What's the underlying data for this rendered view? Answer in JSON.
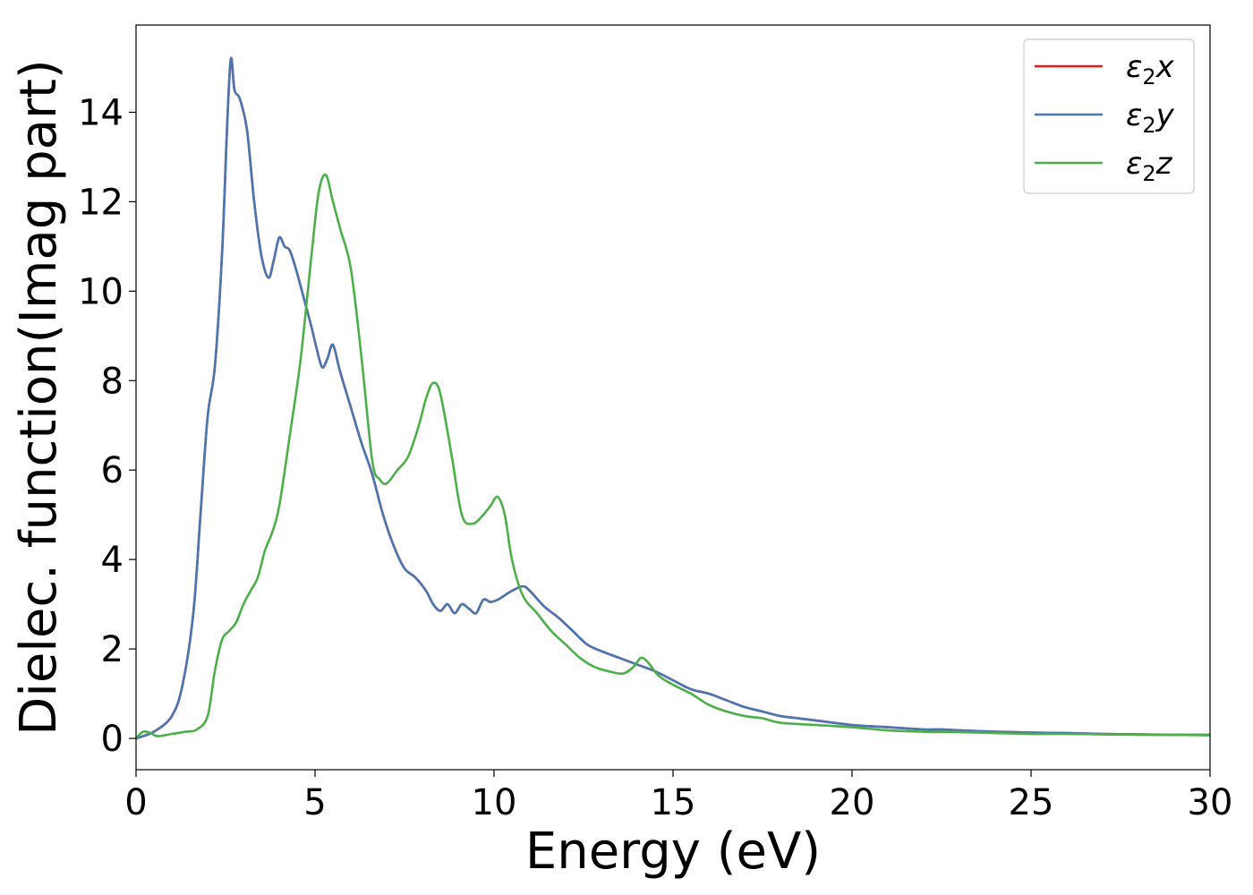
{
  "chart_data": {
    "type": "line",
    "title": "",
    "xlabel": "Energy (eV)",
    "ylabel": "Dielec. function(Imag part)",
    "xlim": [
      0,
      30
    ],
    "ylim": [
      -0.7,
      15.95
    ],
    "xticks": [
      0,
      5,
      10,
      15,
      20,
      25,
      30
    ],
    "yticks": [
      0,
      2,
      4,
      6,
      8,
      10,
      12,
      14
    ],
    "legend_position": "top-right",
    "grid": false,
    "series": [
      {
        "name": "ε₂x",
        "legend_main": "ε",
        "legend_sub": "2",
        "legend_tail": "x",
        "color": "#e41a1c",
        "x": [
          0,
          0.5,
          1.0,
          1.3,
          1.6,
          1.8,
          2.0,
          2.2,
          2.4,
          2.55,
          2.65,
          2.75,
          2.9,
          3.1,
          3.3,
          3.5,
          3.7,
          3.85,
          4.0,
          4.15,
          4.3,
          4.5,
          4.7,
          4.9,
          5.05,
          5.2,
          5.35,
          5.5,
          5.7,
          6.0,
          6.3,
          6.6,
          6.9,
          7.2,
          7.5,
          7.8,
          8.1,
          8.3,
          8.5,
          8.7,
          8.9,
          9.1,
          9.3,
          9.5,
          9.7,
          9.9,
          10.1,
          10.3,
          10.5,
          10.8,
          11.0,
          11.4,
          11.8,
          12.2,
          12.6,
          13.0,
          13.5,
          14.0,
          14.5,
          15.0,
          15.5,
          16.0,
          16.5,
          17.0,
          17.5,
          18.0,
          18.5,
          19.0,
          20.0,
          21.0,
          22.0,
          22.5,
          23.0,
          24.0,
          25.0,
          26.0,
          27.0,
          28.0,
          29.0,
          30.0
        ],
        "values": [
          0.0,
          0.15,
          0.5,
          1.2,
          2.8,
          5.0,
          7.2,
          8.3,
          10.8,
          13.8,
          15.2,
          14.5,
          14.3,
          13.6,
          12.0,
          10.8,
          10.3,
          10.7,
          11.2,
          11.0,
          10.9,
          10.4,
          9.8,
          9.2,
          8.7,
          8.3,
          8.5,
          8.8,
          8.2,
          7.4,
          6.6,
          5.9,
          5.0,
          4.3,
          3.8,
          3.6,
          3.3,
          3.0,
          2.85,
          3.0,
          2.8,
          3.0,
          2.9,
          2.8,
          3.1,
          3.05,
          3.1,
          3.2,
          3.3,
          3.4,
          3.3,
          2.95,
          2.7,
          2.4,
          2.1,
          1.95,
          1.8,
          1.65,
          1.5,
          1.3,
          1.1,
          1.0,
          0.85,
          0.7,
          0.6,
          0.5,
          0.45,
          0.4,
          0.3,
          0.25,
          0.2,
          0.2,
          0.18,
          0.15,
          0.13,
          0.12,
          0.1,
          0.09,
          0.08,
          0.08
        ]
      },
      {
        "name": "ε₂y",
        "legend_main": "ε",
        "legend_sub": "2",
        "legend_tail": "y",
        "color": "#4a77b4",
        "x": [
          0,
          0.5,
          1.0,
          1.3,
          1.6,
          1.8,
          2.0,
          2.2,
          2.4,
          2.55,
          2.65,
          2.75,
          2.9,
          3.1,
          3.3,
          3.5,
          3.7,
          3.85,
          4.0,
          4.15,
          4.3,
          4.5,
          4.7,
          4.9,
          5.05,
          5.2,
          5.35,
          5.5,
          5.7,
          6.0,
          6.3,
          6.6,
          6.9,
          7.2,
          7.5,
          7.8,
          8.1,
          8.3,
          8.5,
          8.7,
          8.9,
          9.1,
          9.3,
          9.5,
          9.7,
          9.9,
          10.1,
          10.3,
          10.5,
          10.8,
          11.0,
          11.4,
          11.8,
          12.2,
          12.6,
          13.0,
          13.5,
          14.0,
          14.5,
          15.0,
          15.5,
          16.0,
          16.5,
          17.0,
          17.5,
          18.0,
          18.5,
          19.0,
          20.0,
          21.0,
          22.0,
          22.5,
          23.0,
          24.0,
          25.0,
          26.0,
          27.0,
          28.0,
          29.0,
          30.0
        ],
        "values": [
          0.0,
          0.15,
          0.5,
          1.2,
          2.8,
          5.0,
          7.2,
          8.3,
          10.8,
          13.8,
          15.2,
          14.5,
          14.3,
          13.6,
          12.0,
          10.8,
          10.3,
          10.7,
          11.2,
          11.0,
          10.9,
          10.4,
          9.8,
          9.2,
          8.7,
          8.3,
          8.5,
          8.8,
          8.2,
          7.4,
          6.6,
          5.9,
          5.0,
          4.3,
          3.8,
          3.6,
          3.3,
          3.0,
          2.85,
          3.0,
          2.8,
          3.0,
          2.9,
          2.8,
          3.1,
          3.05,
          3.1,
          3.2,
          3.3,
          3.4,
          3.3,
          2.95,
          2.7,
          2.4,
          2.1,
          1.95,
          1.8,
          1.65,
          1.5,
          1.3,
          1.1,
          1.0,
          0.85,
          0.7,
          0.6,
          0.5,
          0.45,
          0.4,
          0.3,
          0.25,
          0.2,
          0.2,
          0.18,
          0.15,
          0.13,
          0.12,
          0.1,
          0.09,
          0.08,
          0.08
        ]
      },
      {
        "name": "ε₂z",
        "legend_main": "ε",
        "legend_sub": "2",
        "legend_tail": "z",
        "color": "#4daf4a",
        "x": [
          0,
          0.2,
          0.4,
          0.6,
          1.0,
          1.4,
          1.7,
          2.0,
          2.2,
          2.4,
          2.6,
          2.8,
          3.0,
          3.2,
          3.4,
          3.6,
          3.8,
          4.0,
          4.3,
          4.6,
          4.9,
          5.1,
          5.3,
          5.5,
          5.7,
          6.0,
          6.3,
          6.6,
          6.8,
          7.0,
          7.3,
          7.6,
          7.9,
          8.1,
          8.3,
          8.5,
          8.8,
          9.1,
          9.4,
          9.7,
          9.9,
          10.1,
          10.3,
          10.5,
          10.8,
          11.2,
          11.6,
          12.0,
          12.4,
          12.8,
          13.2,
          13.6,
          13.9,
          14.1,
          14.3,
          14.6,
          15.0,
          15.5,
          16.0,
          16.5,
          17.0,
          17.5,
          18.0,
          19.0,
          20.0,
          21.0,
          22.0,
          23.0,
          24.0,
          25.0,
          26.0,
          27.0,
          28.0,
          29.0,
          30.0
        ],
        "values": [
          0.0,
          0.15,
          0.12,
          0.05,
          0.1,
          0.15,
          0.2,
          0.5,
          1.5,
          2.2,
          2.4,
          2.6,
          3.0,
          3.3,
          3.6,
          4.2,
          4.6,
          5.2,
          6.8,
          8.5,
          10.8,
          12.2,
          12.6,
          12.0,
          11.4,
          10.5,
          8.5,
          6.2,
          5.8,
          5.7,
          6.0,
          6.3,
          7.0,
          7.6,
          7.95,
          7.7,
          6.4,
          5.0,
          4.8,
          5.0,
          5.2,
          5.4,
          5.0,
          4.0,
          3.2,
          2.8,
          2.4,
          2.1,
          1.8,
          1.6,
          1.5,
          1.45,
          1.6,
          1.8,
          1.7,
          1.4,
          1.2,
          1.0,
          0.75,
          0.6,
          0.5,
          0.45,
          0.35,
          0.3,
          0.25,
          0.18,
          0.15,
          0.14,
          0.12,
          0.1,
          0.1,
          0.09,
          0.08,
          0.08,
          0.07
        ]
      }
    ]
  }
}
